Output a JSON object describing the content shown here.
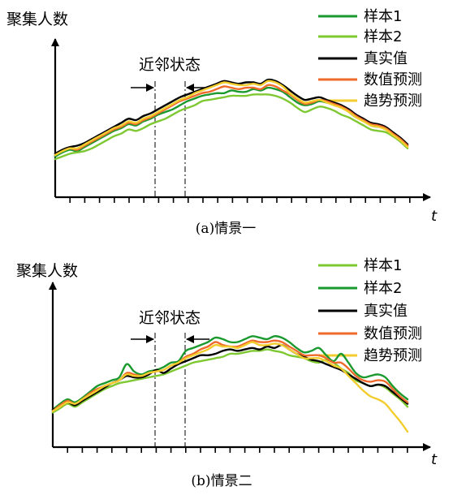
{
  "chart_data": [
    {
      "type": "line",
      "ylabel": "聚集人数",
      "xlabel": "t",
      "caption": "(a)情景一",
      "window_label": "近邻状态",
      "x": [
        0,
        1,
        2,
        3,
        4,
        5,
        6,
        7,
        8,
        9,
        10,
        11,
        12,
        13,
        14,
        15,
        16,
        17,
        18,
        19,
        20,
        21,
        22,
        23,
        24,
        25,
        26,
        27,
        28,
        29,
        30,
        31,
        32,
        33,
        34,
        35,
        36,
        37,
        38,
        39,
        40,
        41,
        42,
        43,
        44,
        45,
        46,
        47,
        48
      ],
      "xlim": [
        0,
        48
      ],
      "ylim": [
        0,
        100
      ],
      "window_x": [
        13,
        17
      ],
      "legend": [
        "样本1",
        "样本2",
        "真实值",
        "数值预测",
        "趋势预测"
      ],
      "series": [
        {
          "name": "样本1",
          "color": "#1a9a2e",
          "values": [
            20,
            23,
            25,
            24,
            27,
            30,
            33,
            36,
            39,
            41,
            44,
            43,
            46,
            48,
            51,
            53,
            55,
            58,
            61,
            63,
            65,
            66,
            67,
            67,
            69,
            68,
            68,
            70,
            69,
            71,
            70,
            68,
            64,
            60,
            58,
            59,
            61,
            60,
            59,
            58,
            53,
            49,
            47,
            43,
            42,
            41,
            37,
            33,
            28
          ]
        },
        {
          "name": "样本2",
          "color": "#7ec832",
          "values": [
            18,
            20,
            22,
            23,
            24,
            26,
            29,
            32,
            35,
            37,
            40,
            39,
            41,
            44,
            46,
            48,
            51,
            54,
            56,
            58,
            61,
            62,
            63,
            64,
            65,
            65,
            65,
            66,
            66,
            66,
            65,
            63,
            60,
            56,
            53,
            55,
            57,
            56,
            54,
            51,
            49,
            46,
            43,
            40,
            39,
            38,
            35,
            31,
            26
          ]
        },
        {
          "name": "真实值",
          "color": "#000000",
          "values": [
            22,
            25,
            27,
            28,
            30,
            33,
            36,
            39,
            42,
            45,
            48,
            47,
            50,
            52,
            55,
            58,
            61,
            64,
            66,
            68,
            70,
            72,
            74,
            76,
            75,
            74,
            75,
            75,
            74,
            77,
            76,
            73,
            69,
            65,
            62,
            63,
            64,
            62,
            60,
            58,
            55,
            51,
            48,
            45,
            44,
            42,
            38,
            34,
            29
          ]
        },
        {
          "name": "数值预测",
          "color": "#ef6b2c",
          "values": [
            21,
            24,
            26,
            25,
            28,
            31,
            34,
            37,
            40,
            42,
            45,
            44,
            47,
            49,
            52,
            55,
            58,
            61,
            63,
            65,
            67,
            68,
            70,
            72,
            71,
            70,
            71,
            71,
            70,
            73,
            72,
            69,
            66,
            62,
            59,
            60,
            62,
            61,
            59,
            57,
            54,
            50,
            47,
            44,
            43,
            41,
            37,
            33,
            28
          ]
        },
        {
          "name": "趋势预测",
          "color": "#f3cd2e",
          "values": [
            21,
            24,
            26,
            26,
            29,
            32,
            35,
            38,
            41,
            43,
            46,
            45,
            48,
            50,
            53,
            56,
            59,
            62,
            64,
            67,
            69,
            71,
            73,
            75,
            74,
            73,
            73,
            74,
            73,
            76,
            75,
            72,
            67,
            63,
            60,
            61,
            62,
            60,
            58,
            56,
            53,
            49,
            46,
            43,
            42,
            40,
            36,
            32,
            27
          ]
        }
      ]
    },
    {
      "type": "line",
      "ylabel": "聚集人数",
      "xlabel": "t",
      "caption": "(b)情景二",
      "window_label": "近邻状态",
      "x": [
        0,
        1,
        2,
        3,
        4,
        5,
        6,
        7,
        8,
        9,
        10,
        11,
        12,
        13,
        14,
        15,
        16,
        17,
        18,
        19,
        20,
        21,
        22,
        23,
        24,
        25,
        26,
        27,
        28,
        29,
        30,
        31,
        32,
        33,
        34,
        35,
        36,
        37,
        38,
        39,
        40,
        41,
        42,
        43,
        44,
        45,
        46,
        47,
        48
      ],
      "xlim": [
        0,
        48
      ],
      "ylim": [
        0,
        100
      ],
      "window_x": [
        13,
        17
      ],
      "legend": [
        "样本1",
        "样本2",
        "真实值",
        "数值预测",
        "趋势预测"
      ],
      "series": [
        {
          "name": "样本1",
          "color": "#7ec832",
          "values": [
            18,
            21,
            24,
            22,
            25,
            28,
            31,
            34,
            36,
            38,
            39,
            40,
            41,
            42,
            43,
            44,
            46,
            48,
            50,
            52,
            53,
            54,
            55,
            56,
            58,
            58,
            59,
            60,
            60,
            61,
            60,
            59,
            57,
            56,
            55,
            53,
            52,
            54,
            52,
            48,
            45,
            40,
            38,
            36,
            37,
            35,
            31,
            27,
            22
          ]
        },
        {
          "name": "样本2",
          "color": "#1a9a2e",
          "values": [
            20,
            24,
            27,
            25,
            28,
            32,
            36,
            38,
            40,
            42,
            51,
            46,
            44,
            46,
            47,
            49,
            52,
            53,
            60,
            62,
            64,
            66,
            69,
            68,
            66,
            66,
            68,
            70,
            69,
            68,
            70,
            69,
            66,
            62,
            59,
            60,
            62,
            57,
            53,
            58,
            52,
            45,
            42,
            43,
            44,
            42,
            36,
            31,
            27
          ]
        },
        {
          "name": "真实值",
          "color": "#000000",
          "values": [
            20,
            22,
            25,
            23,
            26,
            29,
            32,
            35,
            38,
            40,
            43,
            42,
            42,
            44,
            47,
            45,
            48,
            51,
            53,
            55,
            57,
            57,
            58,
            60,
            61,
            60,
            61,
            62,
            61,
            63,
            62,
            64,
            61,
            58,
            56,
            54,
            53,
            51,
            49,
            47,
            44,
            41,
            38,
            36,
            37,
            36,
            32,
            28,
            24
          ]
        },
        {
          "name": "数值预测",
          "color": "#ef6b2c",
          "values": [
            19,
            23,
            26,
            24,
            27,
            31,
            34,
            36,
            38,
            40,
            45,
            44,
            43,
            45,
            46,
            47,
            50,
            52,
            56,
            58,
            61,
            63,
            66,
            64,
            63,
            63,
            65,
            67,
            66,
            66,
            67,
            66,
            63,
            60,
            57,
            57,
            57,
            55,
            52,
            52,
            48,
            43,
            40,
            39,
            40,
            39,
            34,
            29,
            25
          ]
        },
        {
          "name": "趋势预测",
          "color": "#f3cd2e",
          "values": [
            19,
            22,
            25,
            24,
            27,
            30,
            33,
            36,
            38,
            40,
            44,
            43,
            43,
            45,
            46,
            47,
            50,
            52,
            55,
            57,
            59,
            61,
            64,
            63,
            63,
            62,
            64,
            66,
            64,
            64,
            65,
            64,
            61,
            58,
            55,
            55,
            55,
            53,
            50,
            48,
            43,
            38,
            33,
            29,
            27,
            24,
            18,
            12,
            5
          ]
        }
      ]
    }
  ]
}
